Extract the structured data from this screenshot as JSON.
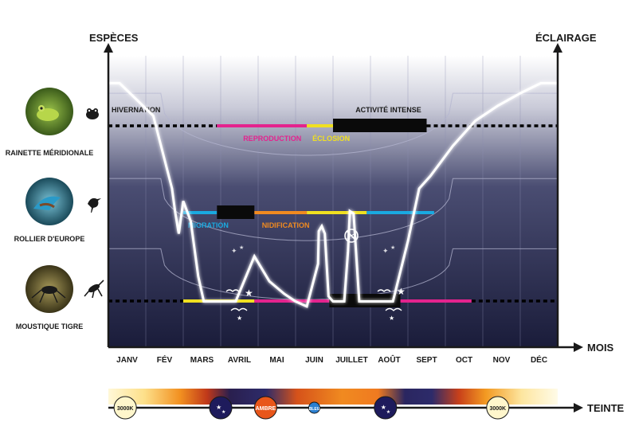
{
  "chart_data": {
    "type": "line",
    "y_axis_label": "ESPÈCES",
    "y2_axis_label": "ÉCLAIRAGE",
    "x_axis_label": "MOIS",
    "months": [
      "JANV",
      "FÉV",
      "MARS",
      "AVRIL",
      "MAI",
      "JUIN",
      "JUILLET",
      "AOÛT",
      "SEPT",
      "OCT",
      "NOV",
      "DÉC"
    ],
    "lighting_curve": {
      "note_units": "months (0 = start of JANV, 12 = end of DÉC) vs relative lighting level 0-1",
      "x": [
        0,
        0.3,
        1.2,
        1.7,
        1.78,
        1.88,
        2.0,
        2.2,
        2.4,
        2.55,
        3.0,
        3.4,
        3.9,
        4.3,
        4.7,
        5.0,
        5.3,
        5.6,
        5.62,
        5.7,
        5.78,
        5.88,
        6.0,
        6.3,
        6.4,
        6.45,
        6.55,
        6.7,
        7.1,
        7.35,
        7.6,
        8.0,
        8.3,
        8.6,
        9.2,
        9.8,
        10.4,
        11.0,
        11.55,
        12.0
      ],
      "y": [
        0.97,
        0.97,
        0.84,
        0.55,
        0.46,
        0.37,
        0.5,
        0.42,
        0.2,
        0.1,
        0.1,
        0.1,
        0.28,
        0.18,
        0.13,
        0.1,
        0.08,
        0.25,
        0.38,
        0.4,
        0.37,
        0.12,
        0.1,
        0.1,
        0.3,
        0.46,
        0.45,
        0.1,
        0.1,
        0.1,
        0.1,
        0.34,
        0.55,
        0.6,
        0.72,
        0.82,
        0.88,
        0.93,
        0.97,
        0.97
      ]
    },
    "species": [
      {
        "name": "RAINETTE MÉRIDIONALE",
        "icon": "frog-icon",
        "activity_bands": [
          {
            "label": "HIVERNATION",
            "start": 0,
            "end": 2.9,
            "color": "#000000",
            "style": "dotted"
          },
          {
            "label": "REPRODUCTION",
            "start": 2.9,
            "end": 5.3,
            "color": "#e4238e",
            "style": "solid"
          },
          {
            "label": "ÉCLOSION",
            "start": 5.3,
            "end": 6.0,
            "color": "#f0e020",
            "style": "solid"
          },
          {
            "label": "ACTIVITÉ INTENSE",
            "start": 6.0,
            "end": 8.5,
            "color": "#0a0a0a",
            "style": "thick"
          },
          {
            "label": "",
            "start": 8.5,
            "end": 12.0,
            "color": "#000000",
            "style": "dotted"
          }
        ]
      },
      {
        "name": "ROLLIER D'EUROPE",
        "icon": "bird-icon",
        "activity_bands": [
          {
            "label": "MIGRATION",
            "start": 2.0,
            "end": 2.9,
            "color": "#1aa9e0",
            "style": "solid"
          },
          {
            "label": "",
            "start": 2.9,
            "end": 3.9,
            "color": "#0a0a0a",
            "style": "thick"
          },
          {
            "label": "NIDIFICATION",
            "start": 3.9,
            "end": 5.3,
            "color": "#f08a20",
            "style": "solid"
          },
          {
            "label": "",
            "start": 5.3,
            "end": 6.9,
            "color": "#f0e020",
            "style": "solid"
          },
          {
            "label": "",
            "start": 6.9,
            "end": 8.7,
            "color": "#1aa9e0",
            "style": "solid"
          }
        ]
      },
      {
        "name": "MOUSTIQUE TIGRE",
        "icon": "mosquito-icon",
        "activity_bands": [
          {
            "label": "",
            "start": 0,
            "end": 2.0,
            "color": "#000000",
            "style": "dotted"
          },
          {
            "label": "",
            "start": 2.0,
            "end": 3.9,
            "color": "#f0e020",
            "style": "solid"
          },
          {
            "label": "",
            "start": 3.9,
            "end": 5.9,
            "color": "#e4238e",
            "style": "solid"
          },
          {
            "label": "",
            "start": 5.9,
            "end": 7.8,
            "color": "#0a0a0a",
            "style": "thick"
          },
          {
            "label": "",
            "start": 7.8,
            "end": 9.7,
            "color": "#e4238e",
            "style": "solid"
          },
          {
            "label": "",
            "start": 9.7,
            "end": 12.0,
            "color": "#000000",
            "style": "dotted"
          }
        ]
      }
    ],
    "teinte": {
      "axis_label": "TEINTE",
      "markers": [
        {
          "label": "3000K",
          "month": 0.45,
          "color": "#fff6cc",
          "kind": "temperature"
        },
        {
          "label": "",
          "month": 3.0,
          "color": "#1e1b5c",
          "kind": "stars-icon"
        },
        {
          "label": "AMBRE",
          "month": 4.2,
          "color": "#e8561a",
          "kind": "amber"
        },
        {
          "label": "BLEU",
          "month": 5.5,
          "color": "#2a7fd0",
          "kind": "blue"
        },
        {
          "label": "",
          "month": 7.4,
          "color": "#1e1b5c",
          "kind": "stars-icon"
        },
        {
          "label": "3000K",
          "month": 10.4,
          "color": "#fff6cc",
          "kind": "temperature"
        }
      ]
    },
    "colors": {
      "background_dark": "#1a1c3a",
      "background_light": "#ffffff",
      "magenta": "#e4238e",
      "yellow": "#f0e020",
      "cyan": "#1aa9e0",
      "orange": "#f08a20"
    }
  }
}
